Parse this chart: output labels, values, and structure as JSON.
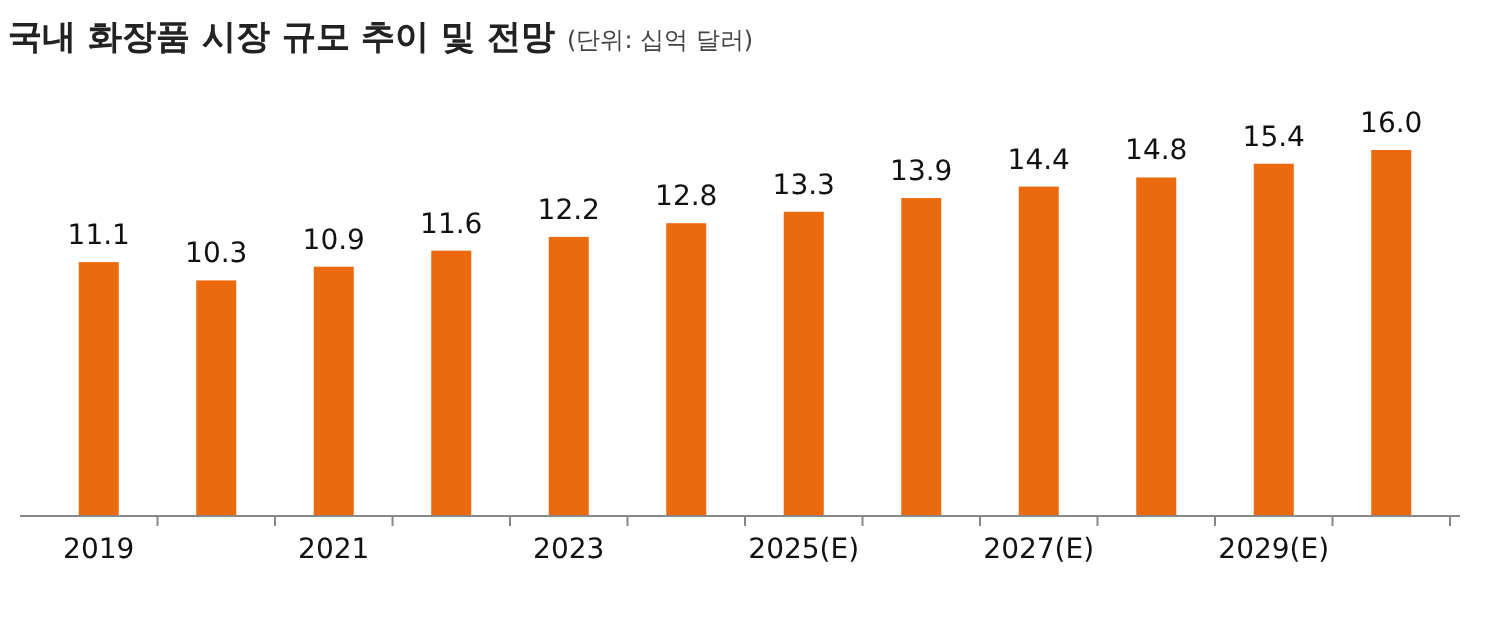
{
  "chart_data": {
    "type": "bar",
    "title": "국내 화장품 시장 규모 추이 및 전망",
    "subtitle": "(단위: 십억 달러)",
    "categories": [
      "2019",
      null,
      "2021",
      null,
      "2023",
      null,
      "2025(E)",
      null,
      "2027(E)",
      null,
      "2029(E)",
      null
    ],
    "values": [
      11.1,
      10.3,
      10.9,
      11.6,
      12.2,
      12.8,
      13.3,
      13.9,
      14.4,
      14.8,
      15.4,
      16.0
    ],
    "value_labels": [
      "11.1",
      "10.3",
      "10.9",
      "11.6",
      "12.2",
      "12.8",
      "13.3",
      "13.9",
      "14.4",
      "14.8",
      "15.4",
      "16.0"
    ],
    "color": "#ec6a0e"
  }
}
